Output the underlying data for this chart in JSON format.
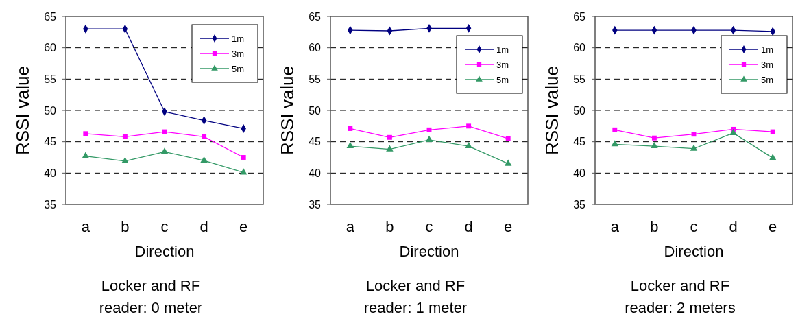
{
  "chart_data": [
    {
      "type": "line",
      "title": "Locker and RF reader: 0 meter",
      "xlabel": "Direction",
      "ylabel": "RSSI value",
      "categories": [
        "a",
        "b",
        "c",
        "d",
        "e"
      ],
      "ylim": [
        35,
        65
      ],
      "yticks": [
        35,
        40,
        45,
        50,
        55,
        60,
        65
      ],
      "grid": "y",
      "legend": "top right",
      "line_style": "solid",
      "series": [
        {
          "name": "1m",
          "color": "#000080",
          "marker": "diamond",
          "values": [
            63.0,
            63.0,
            49.8,
            48.4,
            47.1
          ]
        },
        {
          "name": "3m",
          "color": "#ff00ff",
          "marker": "square",
          "values": [
            46.3,
            45.8,
            46.6,
            45.8,
            42.5
          ]
        },
        {
          "name": "5m",
          "color": "#339966",
          "marker": "triangle",
          "values": [
            42.7,
            41.9,
            43.4,
            42.0,
            40.1
          ]
        }
      ]
    },
    {
      "type": "line",
      "title": "Locker and RF reader: 1 meter",
      "xlabel": "Direction",
      "ylabel": "RSSI value",
      "categories": [
        "a",
        "b",
        "c",
        "d",
        "e"
      ],
      "ylim": [
        35,
        65
      ],
      "yticks": [
        35,
        40,
        45,
        50,
        55,
        60,
        65
      ],
      "grid": "y",
      "legend": "right",
      "line_style": "solid",
      "series": [
        {
          "name": "1m",
          "color": "#000080",
          "marker": "diamond",
          "values": [
            62.8,
            62.7,
            63.1,
            63.1,
            null
          ]
        },
        {
          "name": "3m",
          "color": "#ff00ff",
          "marker": "square",
          "values": [
            47.1,
            45.7,
            46.9,
            47.5,
            45.5
          ]
        },
        {
          "name": "5m",
          "color": "#339966",
          "marker": "triangle",
          "values": [
            44.3,
            43.8,
            45.3,
            44.3,
            41.5
          ]
        }
      ]
    },
    {
      "type": "line",
      "title": "Locker and RF reader: 2 meters",
      "xlabel": "Direction",
      "ylabel": "RSSI value",
      "categories": [
        "a",
        "b",
        "c",
        "d",
        "e"
      ],
      "ylim": [
        35,
        65
      ],
      "yticks": [
        35,
        40,
        45,
        50,
        55,
        60,
        65
      ],
      "grid": "y",
      "legend": "right",
      "line_style": "solid",
      "series": [
        {
          "name": "1m",
          "color": "#000080",
          "marker": "diamond",
          "values": [
            62.8,
            62.8,
            62.8,
            62.8,
            62.6
          ]
        },
        {
          "name": "3m",
          "color": "#ff00ff",
          "marker": "square",
          "values": [
            46.9,
            45.6,
            46.2,
            47.0,
            46.6
          ]
        },
        {
          "name": "5m",
          "color": "#339966",
          "marker": "triangle",
          "values": [
            44.6,
            44.3,
            43.9,
            46.4,
            42.4
          ]
        }
      ]
    }
  ]
}
